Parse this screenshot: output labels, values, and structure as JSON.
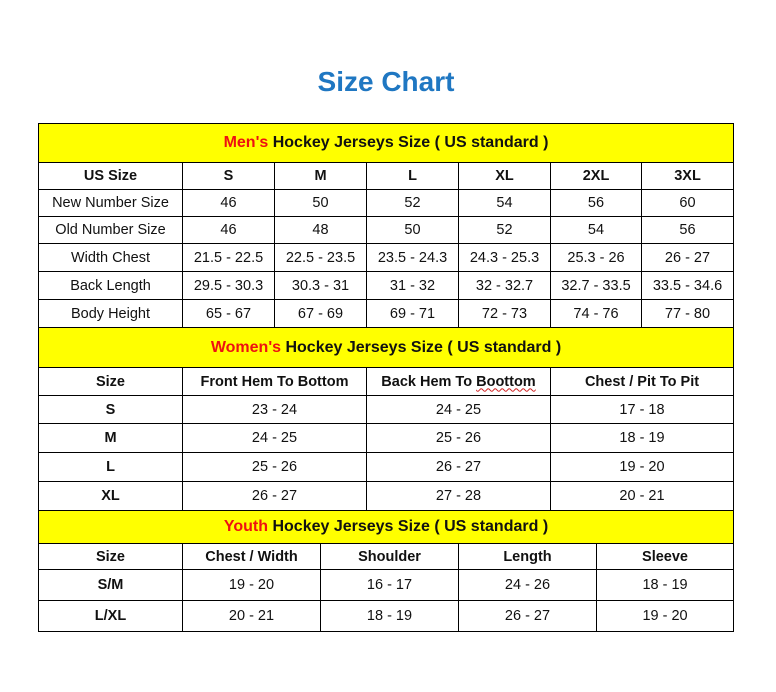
{
  "title": "Size Chart",
  "colors": {
    "title": "#1f77c2",
    "section_header_bg": "#ffff00",
    "highlight": "#ee1111"
  },
  "men": {
    "header_highlight": "Men's",
    "header_rest": " Hockey Jerseys Size ( US standard )",
    "columns": [
      "US Size",
      "S",
      "M",
      "L",
      "XL",
      "2XL",
      "3XL"
    ],
    "rows": [
      [
        "New Number Size",
        "46",
        "50",
        "52",
        "54",
        "56",
        "60"
      ],
      [
        "Old Number Size",
        "46",
        "48",
        "50",
        "52",
        "54",
        "56"
      ],
      [
        "Width Chest",
        "21.5 - 22.5",
        "22.5 - 23.5",
        "23.5 - 24.3",
        "24.3 - 25.3",
        "25.3 - 26",
        "26 - 27"
      ],
      [
        "Back Length",
        "29.5 - 30.3",
        "30.3 - 31",
        "31 - 32",
        "32 - 32.7",
        "32.7 - 33.5",
        "33.5 - 34.6"
      ],
      [
        "Body Height",
        "65 - 67",
        "67 - 69",
        "69 - 71",
        "72 - 73",
        "74 - 76",
        "77 - 80"
      ]
    ]
  },
  "women": {
    "header_highlight": "Women's",
    "header_rest": " Hockey Jerseys Size ( US standard )",
    "columns": [
      "Size",
      "Front Hem To Bottom",
      "Back Hem To Boottom",
      "Chest / Pit To Pit"
    ],
    "rows": [
      [
        "S",
        "23 - 24",
        "24 - 25",
        "17 - 18"
      ],
      [
        "M",
        "24 - 25",
        "25 - 26",
        "18 - 19"
      ],
      [
        "L",
        "25 - 26",
        "26 - 27",
        "19 - 20"
      ],
      [
        "XL",
        "26 - 27",
        "27 - 28",
        "20 - 21"
      ]
    ]
  },
  "youth": {
    "header_highlight": "Youth",
    "header_rest": " Hockey Jerseys Size ( US standard )",
    "columns": [
      "Size",
      "Chest / Width",
      "Shoulder",
      "Length",
      "Sleeve"
    ],
    "rows": [
      [
        "S/M",
        "19 - 20",
        "16 - 17",
        "24 - 26",
        "18 - 19"
      ],
      [
        "L/XL",
        "20 - 21",
        "18 - 19",
        "26 - 27",
        "19 - 20"
      ]
    ]
  }
}
